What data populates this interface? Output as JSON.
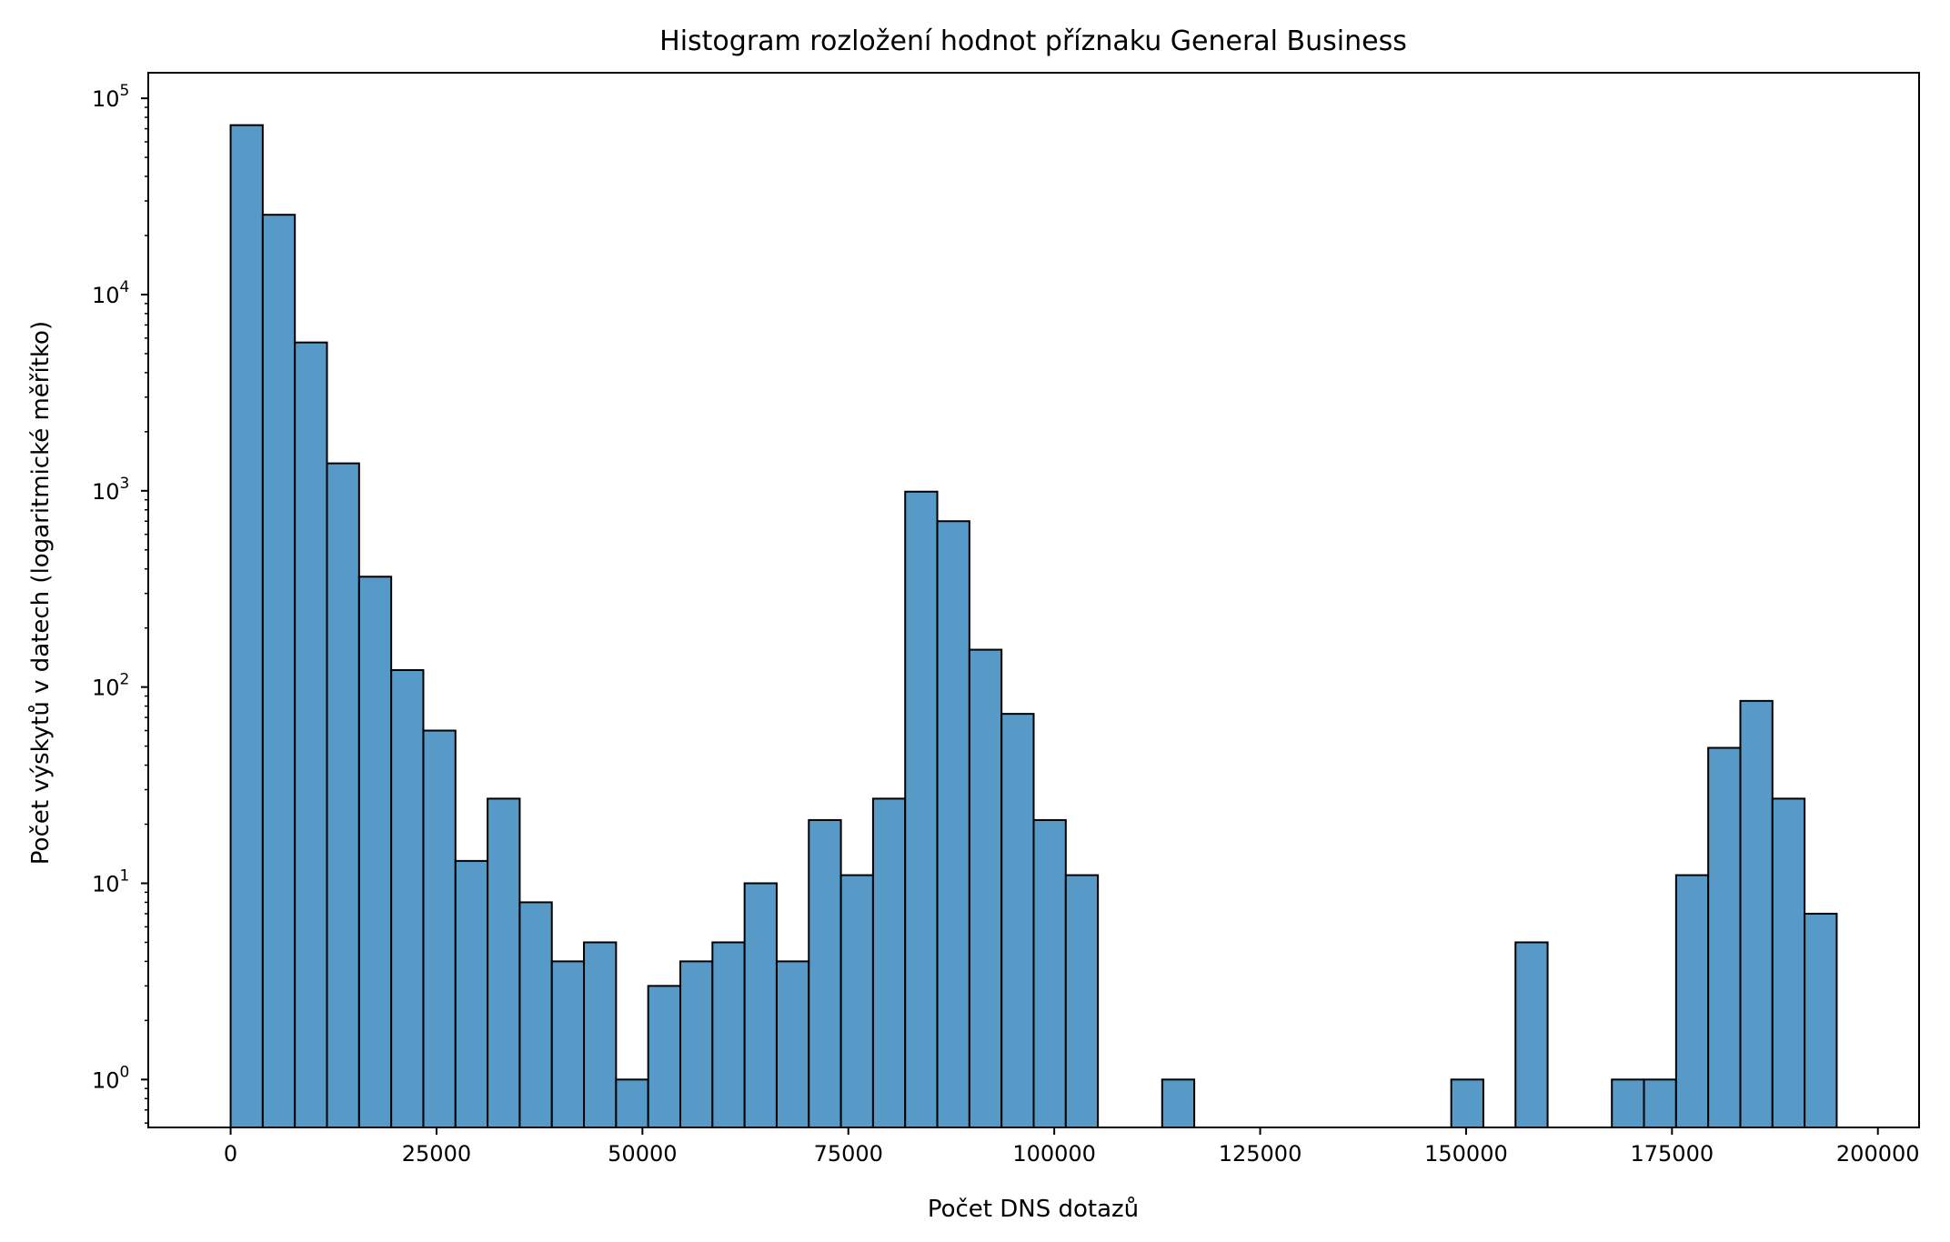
{
  "chart_data": {
    "type": "bar",
    "title": "Histogram rozložení hodnot příznaku General Business",
    "xlabel": "Počet DNS dotazů",
    "ylabel": "Počet výskytů v datech (logaritmické měřítko)",
    "y_scale": "log",
    "xlim": [
      -10000,
      205000
    ],
    "ylim": [
      0.57,
      135000
    ],
    "bar_color": "#5799c7",
    "edge_color": "#000000",
    "bin_width": 3900,
    "x_ticks": [
      {
        "value": 0,
        "label": "0"
      },
      {
        "value": 25000,
        "label": "25000"
      },
      {
        "value": 50000,
        "label": "50000"
      },
      {
        "value": 75000,
        "label": "75000"
      },
      {
        "value": 100000,
        "label": "100000"
      },
      {
        "value": 125000,
        "label": "125000"
      },
      {
        "value": 150000,
        "label": "150000"
      },
      {
        "value": 175000,
        "label": "175000"
      },
      {
        "value": 200000,
        "label": "200000"
      }
    ],
    "y_ticks": [
      {
        "value": 1,
        "base": "10",
        "exp": "0"
      },
      {
        "value": 10,
        "base": "10",
        "exp": "1"
      },
      {
        "value": 100,
        "base": "10",
        "exp": "2"
      },
      {
        "value": 1000,
        "base": "10",
        "exp": "3"
      },
      {
        "value": 10000,
        "base": "10",
        "exp": "4"
      },
      {
        "value": 100000,
        "base": "10",
        "exp": "5"
      }
    ],
    "bins": [
      {
        "x": 0,
        "count": 73000
      },
      {
        "x": 3900,
        "count": 25500
      },
      {
        "x": 7800,
        "count": 5700
      },
      {
        "x": 11700,
        "count": 1380
      },
      {
        "x": 15600,
        "count": 365
      },
      {
        "x": 19500,
        "count": 122
      },
      {
        "x": 23400,
        "count": 60
      },
      {
        "x": 27300,
        "count": 13
      },
      {
        "x": 31200,
        "count": 27
      },
      {
        "x": 35100,
        "count": 8
      },
      {
        "x": 39000,
        "count": 4
      },
      {
        "x": 42900,
        "count": 5
      },
      {
        "x": 46800,
        "count": 1
      },
      {
        "x": 50700,
        "count": 3
      },
      {
        "x": 54600,
        "count": 4
      },
      {
        "x": 58500,
        "count": 5
      },
      {
        "x": 62400,
        "count": 10
      },
      {
        "x": 66300,
        "count": 4
      },
      {
        "x": 70200,
        "count": 21
      },
      {
        "x": 74100,
        "count": 11
      },
      {
        "x": 78000,
        "count": 27
      },
      {
        "x": 81900,
        "count": 990
      },
      {
        "x": 85800,
        "count": 700
      },
      {
        "x": 89700,
        "count": 155
      },
      {
        "x": 93600,
        "count": 73
      },
      {
        "x": 97500,
        "count": 21
      },
      {
        "x": 101400,
        "count": 11
      },
      {
        "x": 113100,
        "count": 1
      },
      {
        "x": 148200,
        "count": 1
      },
      {
        "x": 156000,
        "count": 5
      },
      {
        "x": 167700,
        "count": 1
      },
      {
        "x": 171600,
        "count": 1
      },
      {
        "x": 175500,
        "count": 11
      },
      {
        "x": 179400,
        "count": 49
      },
      {
        "x": 183300,
        "count": 85
      },
      {
        "x": 187200,
        "count": 27
      },
      {
        "x": 191100,
        "count": 7
      }
    ]
  }
}
